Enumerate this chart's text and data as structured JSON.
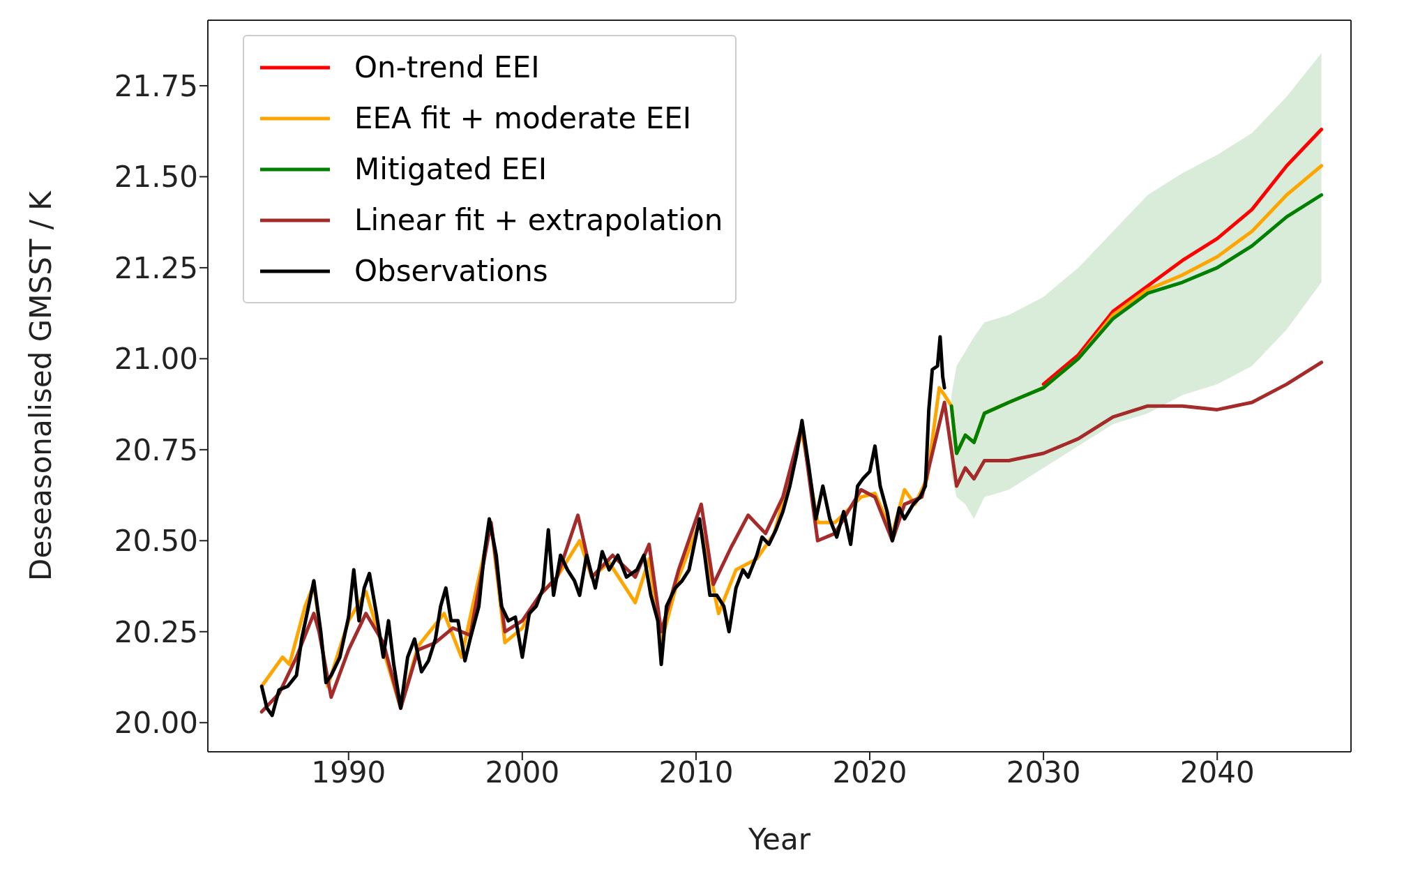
{
  "chart_data": {
    "type": "line",
    "xlabel": "Year",
    "ylabel": "Deseasonalised GMSST / K",
    "xlim": [
      1981.9,
      2047.7
    ],
    "xticks": [
      1990,
      2000,
      2010,
      2020,
      2030,
      2040
    ],
    "ylim": [
      19.92,
      21.93
    ],
    "yticks": [
      {
        "value": 20,
        "label": "20.00"
      },
      20.25,
      {
        "value": 20.5,
        "label": "20.50"
      },
      20.75,
      {
        "value": 21,
        "label": "21.00"
      },
      21.25,
      {
        "value": 21.5,
        "label": "21.50"
      },
      21.75
    ],
    "legend": "top left",
    "marker": "none",
    "line_style": "solid",
    "series": [
      {
        "name": "On-trend EEI",
        "color": "#ff0000",
        "x": [
          2030,
          2032,
          2034,
          2036,
          2038,
          2040,
          2042,
          2044,
          2046
        ],
        "values": [
          20.93,
          21.01,
          21.13,
          21.2,
          21.27,
          21.33,
          21.41,
          21.53,
          21.63
        ]
      },
      {
        "name": "EEA fit + moderate EEI",
        "color": "#ffa500",
        "x": [
          1985,
          1986.2,
          1986.6,
          1987.5,
          1988,
          1988.8,
          1990,
          1991,
          1992,
          1993,
          1994,
          1995.5,
          1996.5,
          1998.2,
          1999,
          2000,
          2001,
          2002,
          2003.3,
          2004,
          2005,
          2006.5,
          2007.3,
          2008,
          2009,
          2010.2,
          2011.3,
          2012.3,
          2013.5,
          2014.5,
          2016.1,
          2017,
          2018,
          2019.5,
          2020.3,
          2021.3,
          2022,
          2022.6,
          2023.3,
          2024,
          2024.3,
          2024.7,
          2025,
          2025.5,
          2026,
          2026.6,
          2028,
          2030,
          2032,
          2034,
          2036,
          2038,
          2040,
          2042,
          2044,
          2046
        ],
        "values": [
          20.1,
          20.18,
          20.16,
          20.32,
          20.38,
          20.1,
          20.28,
          20.36,
          20.2,
          20.04,
          20.21,
          20.3,
          20.18,
          20.55,
          20.22,
          20.26,
          20.35,
          20.4,
          20.5,
          20.4,
          20.44,
          20.33,
          20.45,
          20.22,
          20.4,
          20.55,
          20.3,
          20.42,
          20.45,
          20.52,
          20.8,
          20.55,
          20.55,
          20.62,
          20.63,
          20.52,
          20.64,
          20.6,
          20.67,
          20.92,
          20.9,
          20.87,
          20.74,
          20.79,
          20.77,
          20.85,
          20.88,
          20.92,
          21.0,
          21.12,
          21.19,
          21.23,
          21.28,
          21.35,
          21.45,
          21.53
        ]
      },
      {
        "name": "Mitigated EEI",
        "color": "#008000",
        "x": [
          2024.7,
          2025,
          2025.5,
          2026,
          2026.6,
          2028,
          2030,
          2032,
          2034,
          2036,
          2038,
          2040,
          2042,
          2044,
          2046
        ],
        "values": [
          20.87,
          20.74,
          20.79,
          20.77,
          20.85,
          20.88,
          20.92,
          21.0,
          21.11,
          21.18,
          21.21,
          21.25,
          21.31,
          21.39,
          21.45
        ],
        "lower": [
          20.68,
          20.62,
          20.6,
          20.56,
          20.62,
          20.64,
          20.7,
          20.76,
          20.82,
          20.85,
          20.9,
          20.93,
          20.98,
          21.08,
          21.21
        ],
        "upper": [
          20.9,
          20.98,
          21.02,
          21.06,
          21.1,
          21.12,
          21.17,
          21.25,
          21.35,
          21.45,
          21.51,
          21.56,
          21.62,
          21.72,
          21.84
        ]
      },
      {
        "name": "Linear fit + extrapolation",
        "color": "#a52a2a",
        "x": [
          1985,
          1986,
          1987,
          1988,
          1988.3,
          1989,
          1990,
          1991,
          1992,
          1993,
          1994,
          1995,
          1996,
          1997,
          1998.2,
          1999,
          2000,
          2001,
          2002,
          2003.2,
          2004,
          2005.2,
          2006.5,
          2007.3,
          2008,
          2009,
          2010.3,
          2011,
          2012,
          2013,
          2014,
          2015,
          2016.1,
          2017,
          2018,
          2019.5,
          2020.3,
          2021.3,
          2022,
          2023,
          2024.3,
          2025,
          2025.5,
          2026,
          2026.6,
          2028,
          2030,
          2032,
          2034,
          2036,
          2038,
          2040,
          2042,
          2044,
          2046
        ],
        "values": [
          20.03,
          20.08,
          20.18,
          20.3,
          20.25,
          20.07,
          20.2,
          20.3,
          20.22,
          20.04,
          20.2,
          20.22,
          20.26,
          20.24,
          20.55,
          20.25,
          20.28,
          20.35,
          20.4,
          20.57,
          20.4,
          20.46,
          20.4,
          20.49,
          20.25,
          20.42,
          20.6,
          20.38,
          20.48,
          20.57,
          20.52,
          20.62,
          20.82,
          20.5,
          20.52,
          20.64,
          20.62,
          20.5,
          20.6,
          20.62,
          20.88,
          20.65,
          20.7,
          20.67,
          20.72,
          20.72,
          20.74,
          20.78,
          20.84,
          20.87,
          20.87,
          20.86,
          20.88,
          20.93,
          20.99
        ]
      },
      {
        "name": "Observations",
        "color": "#000000",
        "x": [
          1985,
          1985.3,
          1985.6,
          1986,
          1986.5,
          1987,
          1987.3,
          1987.7,
          1988,
          1988.4,
          1988.7,
          1989,
          1989.5,
          1990,
          1990.3,
          1990.6,
          1990.9,
          1991.2,
          1991.6,
          1992,
          1992.3,
          1992.6,
          1993,
          1993.4,
          1993.8,
          1994.2,
          1994.6,
          1995,
          1995.3,
          1995.6,
          1995.9,
          1996.3,
          1996.7,
          1997,
          1997.5,
          1997.8,
          1998.1,
          1998.5,
          1998.8,
          1999.2,
          1999.6,
          2000,
          2000.4,
          2000.8,
          2001.2,
          2001.5,
          2001.8,
          2002.2,
          2002.6,
          2003,
          2003.3,
          2003.7,
          2004.2,
          2004.6,
          2005,
          2005.5,
          2006,
          2006.6,
          2007,
          2007.4,
          2007.8,
          2008,
          2008.3,
          2008.8,
          2009.2,
          2009.6,
          2009.9,
          2010.2,
          2010.5,
          2010.8,
          2011.2,
          2011.6,
          2011.9,
          2012.3,
          2012.7,
          2013,
          2013.5,
          2013.8,
          2014.2,
          2014.6,
          2015,
          2015.4,
          2015.8,
          2016.1,
          2016.5,
          2016.9,
          2017.3,
          2017.7,
          2018.1,
          2018.5,
          2018.9,
          2019.3,
          2019.6,
          2020,
          2020.3,
          2020.6,
          2021,
          2021.3,
          2021.7,
          2022,
          2022.5,
          2022.9,
          2023.2,
          2023.4,
          2023.6,
          2023.9,
          2024.05,
          2024.2,
          2024.3
        ],
        "values": [
          20.1,
          20.04,
          20.02,
          20.09,
          20.1,
          20.13,
          20.23,
          20.32,
          20.39,
          20.25,
          20.11,
          20.13,
          20.18,
          20.29,
          20.42,
          20.28,
          20.37,
          20.41,
          20.3,
          20.18,
          20.28,
          20.16,
          20.04,
          20.18,
          20.23,
          20.14,
          20.17,
          20.23,
          20.32,
          20.37,
          20.28,
          20.28,
          20.17,
          20.23,
          20.32,
          20.46,
          20.56,
          20.46,
          20.32,
          20.28,
          20.29,
          20.18,
          20.3,
          20.32,
          20.37,
          20.53,
          20.35,
          20.46,
          20.42,
          20.39,
          20.35,
          20.46,
          20.37,
          20.47,
          20.42,
          20.46,
          20.4,
          20.42,
          20.46,
          20.35,
          20.28,
          20.16,
          20.32,
          20.37,
          20.39,
          20.42,
          20.49,
          20.56,
          20.46,
          20.35,
          20.35,
          20.32,
          20.25,
          20.37,
          20.42,
          20.4,
          20.46,
          20.51,
          20.49,
          20.53,
          20.58,
          20.65,
          20.74,
          20.83,
          20.7,
          20.56,
          20.65,
          20.56,
          20.51,
          20.58,
          20.49,
          20.65,
          20.67,
          20.69,
          20.76,
          20.65,
          20.58,
          20.5,
          20.59,
          20.56,
          20.6,
          20.62,
          20.65,
          20.86,
          20.97,
          20.98,
          21.06,
          20.95,
          20.92
        ]
      }
    ]
  }
}
